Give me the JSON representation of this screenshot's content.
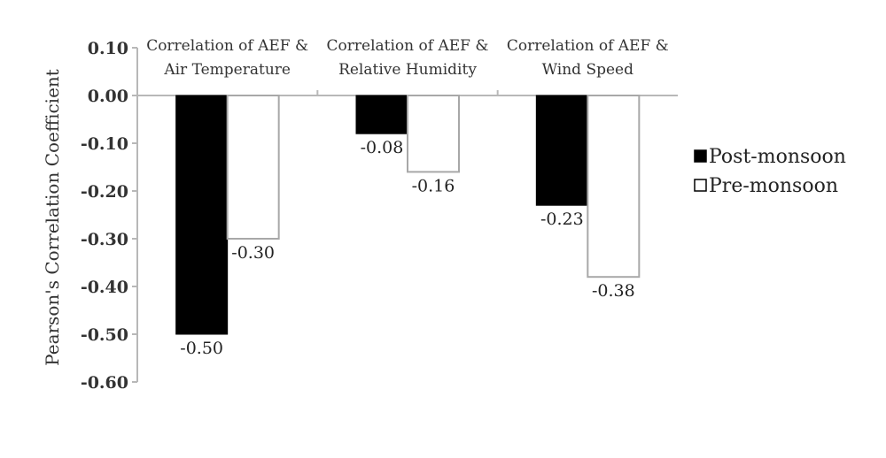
{
  "chart_data": {
    "type": "bar",
    "ylabel": "Pearson's Correlation Coefficient",
    "ylim": [
      -0.6,
      0.1
    ],
    "yticks": [
      "0.10",
      "0.00",
      "-0.10",
      "-0.20",
      "-0.30",
      "-0.40",
      "-0.50",
      "-0.60"
    ],
    "yticks_values": [
      0.1,
      0.0,
      -0.1,
      -0.2,
      -0.3,
      -0.4,
      -0.5,
      -0.6
    ],
    "categories": [
      [
        "Correlation of AEF &",
        "Air Temperature"
      ],
      [
        "Correlation of AEF &",
        "Relative Humidity"
      ],
      [
        "Correlation of AEF &",
        "Wind Speed"
      ]
    ],
    "series": [
      {
        "name": "Post-monsoon",
        "color": "#000000",
        "values": [
          -0.5,
          -0.08,
          -0.23
        ],
        "labels": [
          "-0.50",
          "-0.08",
          "-0.23"
        ]
      },
      {
        "name": "Pre-monsoon",
        "color": "#ffffff",
        "values": [
          -0.3,
          -0.16,
          -0.38
        ],
        "labels": [
          "-0.30",
          "-0.16",
          "-0.38"
        ]
      }
    ],
    "grid": false,
    "legend": "right"
  }
}
